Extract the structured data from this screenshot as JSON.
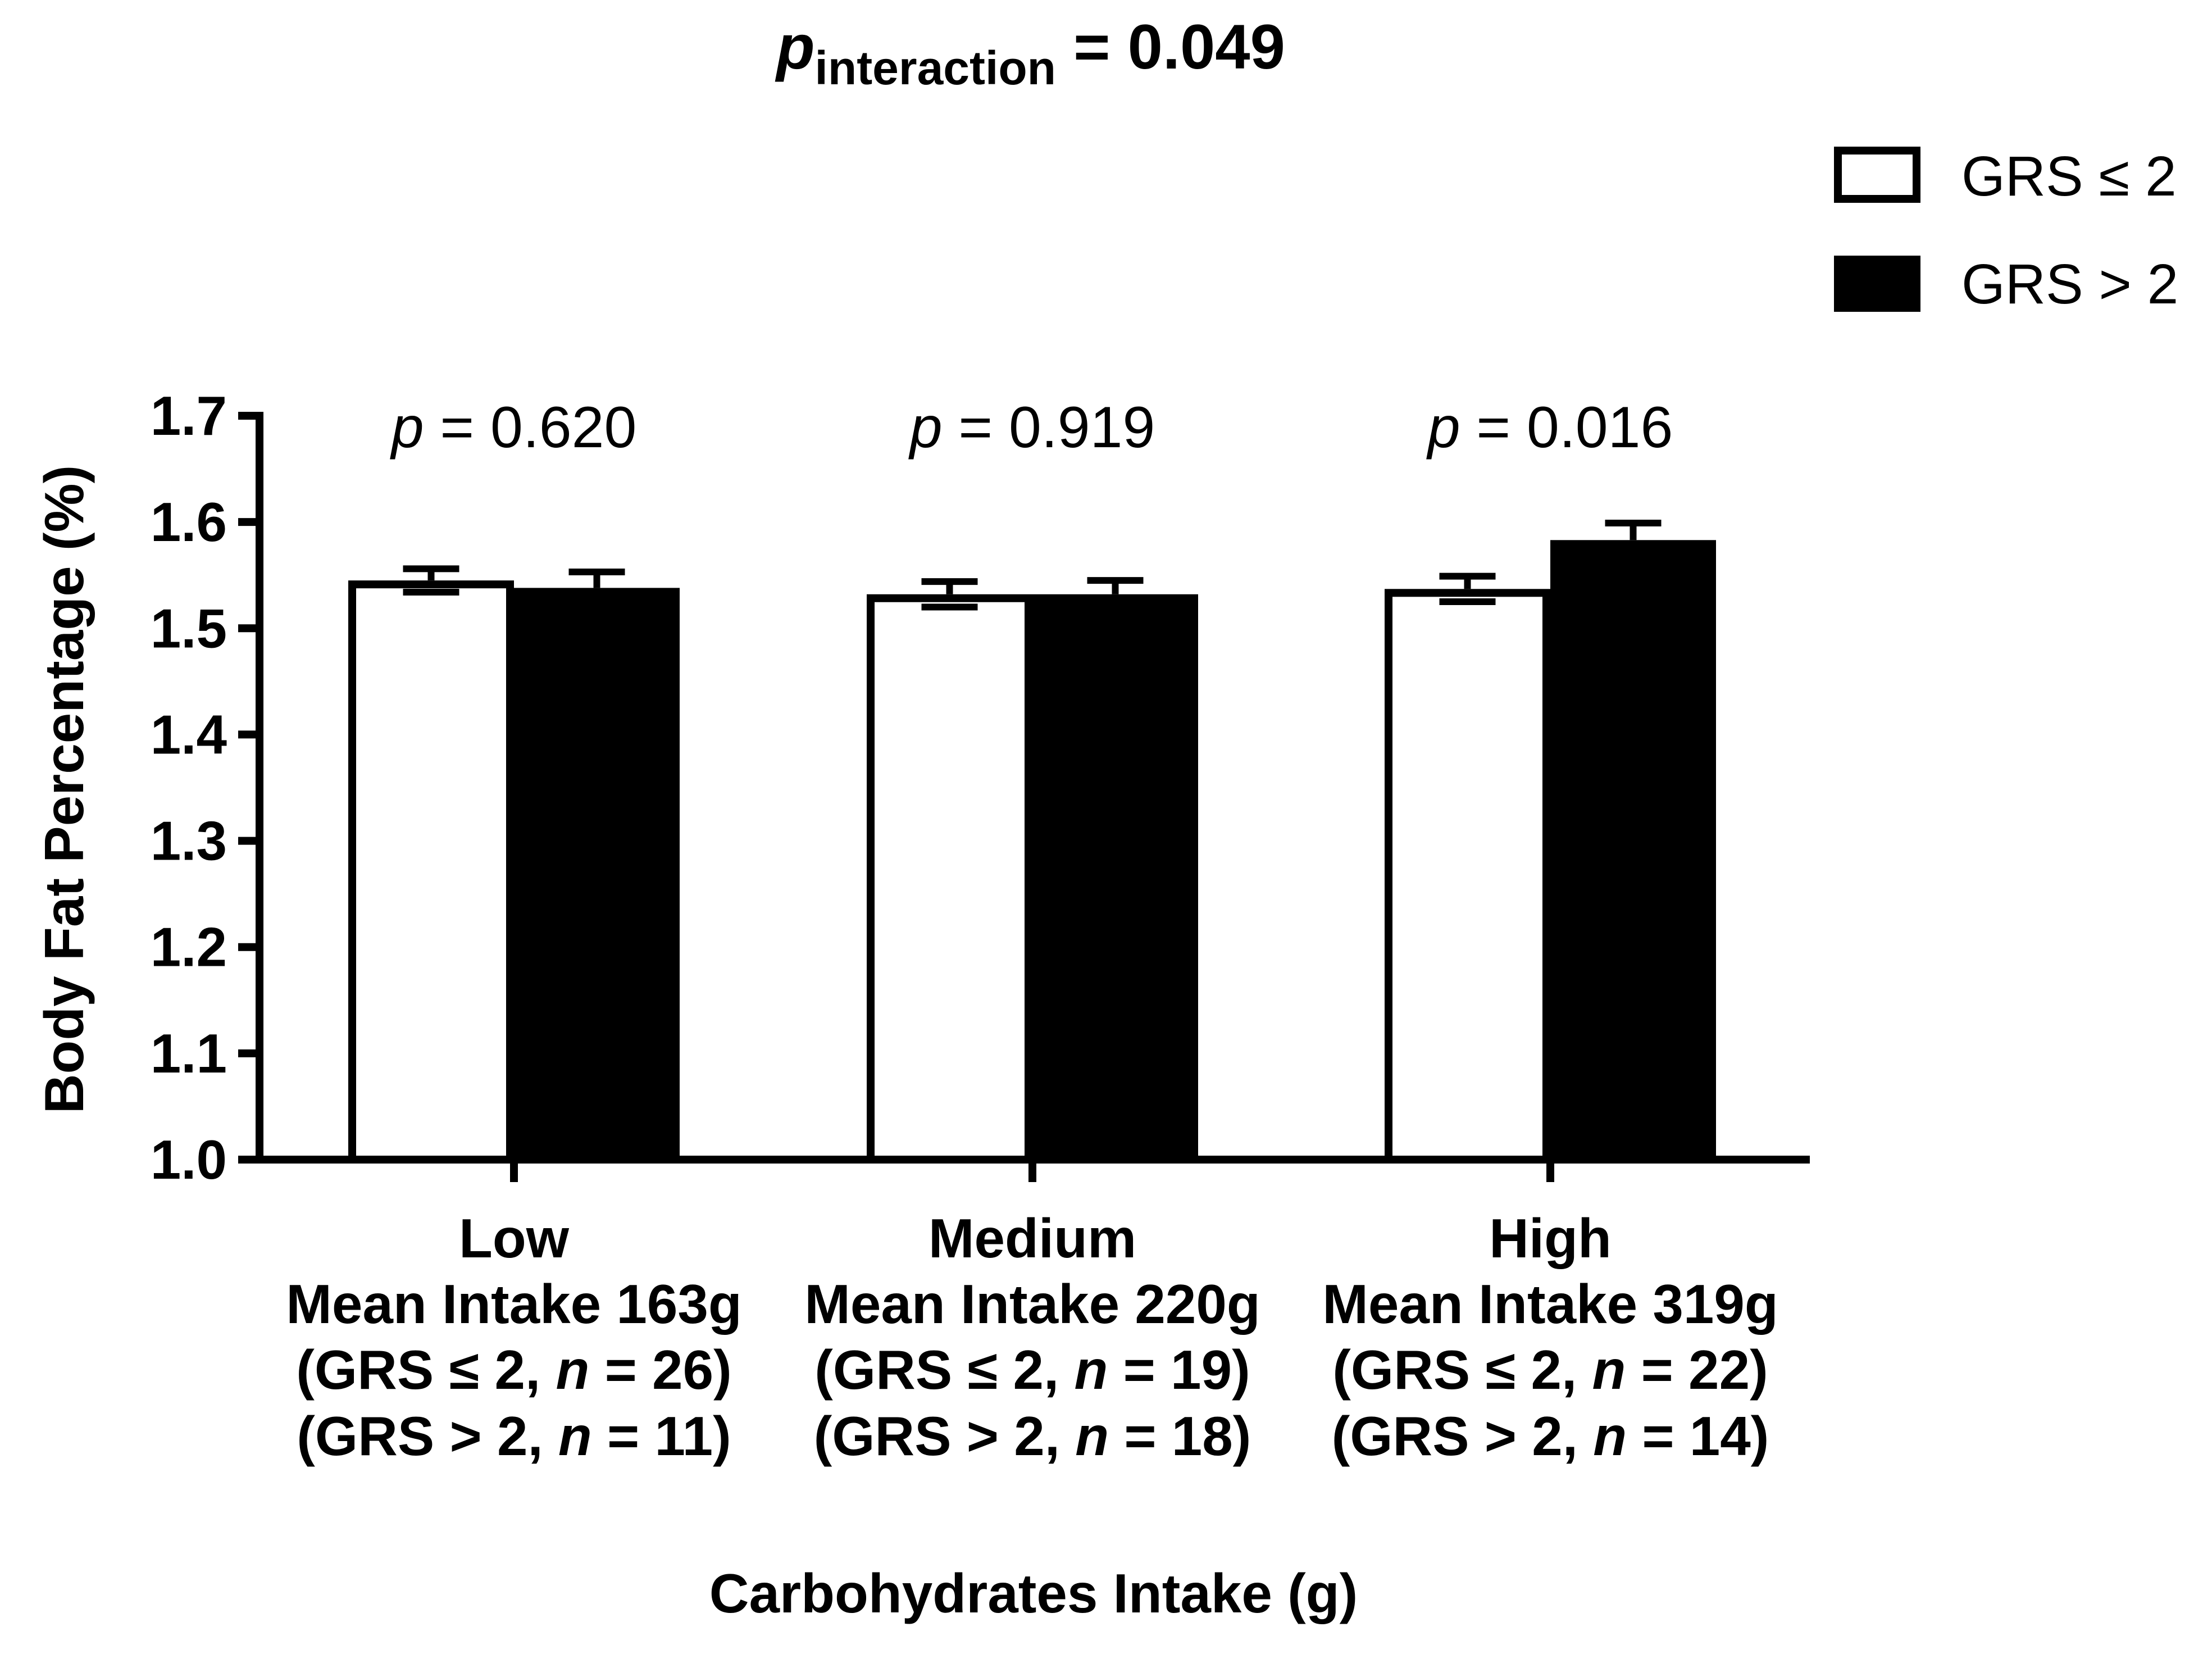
{
  "chart_data": {
    "type": "bar",
    "title_p": "p",
    "title_sub": "interaction",
    "title_value": " = 0.049",
    "ylabel": "Body Fat Percentage (%)",
    "xlabel": "Carbohydrates Intake (g)",
    "ylim": [
      1.0,
      1.7
    ],
    "yticks": [
      "1.0",
      "1.1",
      "1.2",
      "1.3",
      "1.4",
      "1.5",
      "1.6",
      "1.7"
    ],
    "legend": [
      {
        "label": "GRS ≤ 2",
        "color": "#ffffff"
      },
      {
        "label": "GRS > 2",
        "color": "#000000"
      }
    ],
    "categories": [
      {
        "name": "Low",
        "mean_intake": "Mean Intake 163g",
        "n1_prefix": "(GRS ≤ 2, ",
        "n1_value": " = 26)",
        "n2_prefix": "(GRS > 2, ",
        "n2_value": " = 11)",
        "p_value": " = 0.620"
      },
      {
        "name": "Medium",
        "mean_intake": "Mean Intake 220g",
        "n1_prefix": "(GRS ≤ 2, ",
        "n1_value": " = 19)",
        "n2_prefix": "(GRS > 2, ",
        "n2_value": " = 18)",
        "p_value": " = 0.919"
      },
      {
        "name": "High",
        "mean_intake": "Mean Intake 319g",
        "n1_prefix": "(GRS ≤ 2, ",
        "n1_value": " = 22)",
        "n2_prefix": "(GRS > 2, ",
        "n2_value": " = 14)",
        "p_value": " = 0.016"
      }
    ],
    "series": [
      {
        "name": "GRS ≤ 2",
        "values": [
          1.545,
          1.532,
          1.537
        ],
        "errors": [
          0.011,
          0.012,
          0.012
        ]
      },
      {
        "name": "GRS > 2",
        "values": [
          1.538,
          1.532,
          1.583
        ],
        "errors": [
          0.015,
          0.013,
          0.016
        ]
      }
    ],
    "p_letter": "p",
    "n_letter": "n"
  }
}
